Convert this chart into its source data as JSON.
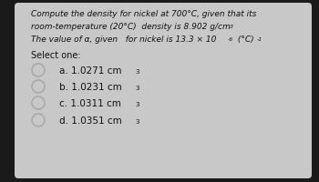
{
  "bg_outer": "#1a1a1a",
  "bg_inner": "#c8c8c8",
  "text_color": "#111111",
  "title_line1": "Compute the density for nickel at 700°C, given that its",
  "title_line2": "room-temperature (20°C)  density is 8.902 g/cm",
  "title_line2_sup": "3",
  "title_line3_a": "The value of α, given   for nickel is 13.3 × 10",
  "title_line3_exp": "-6",
  "title_line3_b": " (°C)",
  "title_line3_inv": "-1",
  "select_label": "Select one:",
  "options": [
    {
      "label": "a. 1.0271 cm",
      "sup": "3"
    },
    {
      "label": "b. 1.0231 cm",
      "sup": "3"
    },
    {
      "label": "c. 1.0311 cm",
      "sup": "3"
    },
    {
      "label": "d. 1.0351 cm",
      "sup": "3"
    }
  ],
  "circle_color": "#aaaaaa",
  "font_size_main": 6.5,
  "font_size_options": 7.5,
  "font_size_select": 7.0,
  "font_size_sup": 4.5
}
